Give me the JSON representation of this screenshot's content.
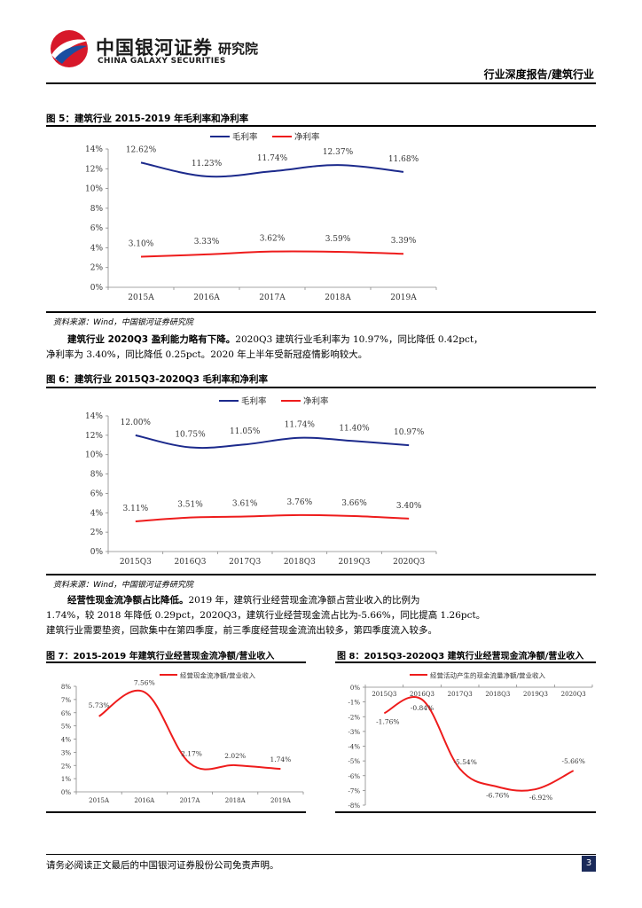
{
  "header": {
    "company_cn": "中国银河证券",
    "institute": "研究院",
    "company_en": "CHINA GALAXY SECURITIES",
    "report_type": "行业深度报告/建筑行业"
  },
  "figure5": {
    "title": "图 5：建筑行业 2015-2019 年毛利率和净利率",
    "source": "资料来源：Wind，中国银河证券研究院"
  },
  "para1": {
    "bold": "建筑行业 2020Q3 盈利能力略有下降。",
    "text1": "2020Q3 建筑行业毛利率为 10.97%，同比降低 0.42pct，",
    "text2": "净利率为 3.40%，同比降低 0.25pct。2020 年上半年受新冠疫情影响较大。"
  },
  "figure6": {
    "title": "图 6：建筑行业 2015Q3-2020Q3 毛利率和净利率",
    "source": "资料来源：Wind，中国银河证券研究院"
  },
  "para2": {
    "bold": "经营性现金流净额占比降低。",
    "text1": "2019 年，建筑行业经营现金流净额占营业收入的比例为",
    "text2": "1.74%，较 2018 年降低 0.29pct，2020Q3，建筑行业经营现金流占比为-5.66%，同比提高 1.26pct。",
    "text3": "建筑行业需要垫资，回款集中在第四季度，前三季度经营现金流流出较多，第四季度流入较多。"
  },
  "figure7": {
    "title": "图 7：2015-2019 年建筑行业经营现金流净额/营业收入"
  },
  "figure8": {
    "title": "图 8：2015Q3-2020Q3 建筑行业经营现金流净额/营业收入"
  },
  "footer": {
    "disclaimer": "请务必阅读正文最后的中国银河证券股份公司免责声明。",
    "page": "3"
  },
  "colors": {
    "blue": "#1c2a8c",
    "red": "#ee1c1c",
    "logo_red": "#d7182a",
    "logo_blue": "#1a4ea1"
  },
  "chart_data": [
    {
      "id": "figure5",
      "type": "line",
      "categories": [
        "2015A",
        "2016A",
        "2017A",
        "2018A",
        "2019A"
      ],
      "series": [
        {
          "name": "毛利率",
          "values": [
            12.62,
            11.23,
            11.74,
            12.37,
            11.68
          ],
          "labels": [
            "12.62%",
            "11.23%",
            "11.74%",
            "12.37%",
            "11.68%"
          ],
          "color": "#1c2a8c"
        },
        {
          "name": "净利率",
          "values": [
            3.1,
            3.33,
            3.62,
            3.59,
            3.39
          ],
          "labels": [
            "3.10%",
            "3.33%",
            "3.62%",
            "3.59%",
            "3.39%"
          ],
          "color": "#ee1c1c"
        }
      ],
      "yticks": [
        "14%",
        "12%",
        "10%",
        "8%",
        "6%",
        "4%",
        "2%",
        "0%"
      ],
      "ylim": [
        0,
        14
      ],
      "legend": "top"
    },
    {
      "id": "figure6",
      "type": "line",
      "categories": [
        "2015Q3",
        "2016Q3",
        "2017Q3",
        "2018Q3",
        "2019Q3",
        "2020Q3"
      ],
      "series": [
        {
          "name": "毛利率",
          "values": [
            12.0,
            10.75,
            11.05,
            11.74,
            11.4,
            10.97
          ],
          "labels": [
            "12.00%",
            "10.75%",
            "11.05%",
            "11.74%",
            "11.40%",
            "10.97%"
          ],
          "color": "#1c2a8c"
        },
        {
          "name": "净利率",
          "values": [
            3.11,
            3.51,
            3.61,
            3.76,
            3.66,
            3.4
          ],
          "labels": [
            "3.11%",
            "3.51%",
            "3.61%",
            "3.76%",
            "3.66%",
            "3.40%"
          ],
          "color": "#ee1c1c"
        }
      ],
      "yticks": [
        "14%",
        "12%",
        "10%",
        "8%",
        "6%",
        "4%",
        "2%",
        "0%"
      ],
      "ylim": [
        0,
        14
      ],
      "legend": "top"
    },
    {
      "id": "figure7",
      "type": "line",
      "categories": [
        "2015A",
        "2016A",
        "2017A",
        "2018A",
        "2019A"
      ],
      "series": [
        {
          "name": "经营现金流净额/营业收入",
          "values": [
            5.73,
            7.56,
            2.17,
            2.02,
            1.74
          ],
          "labels": [
            "5.73%",
            "7.56%",
            "2.17%",
            "2.02%",
            "1.74%"
          ],
          "color": "#ee1c1c"
        }
      ],
      "yticks": [
        "8%",
        "7%",
        "6%",
        "5%",
        "4%",
        "3%",
        "2%",
        "1%",
        "0%"
      ],
      "ylim": [
        0,
        8
      ],
      "legend": "top"
    },
    {
      "id": "figure8",
      "type": "line",
      "categories": [
        "2015Q3",
        "2016Q3",
        "2017Q3",
        "2018Q3",
        "2019Q3",
        "2020Q3"
      ],
      "series": [
        {
          "name": "经营活动产生的现金流量净额/营业收入",
          "values": [
            -1.76,
            -0.84,
            -5.54,
            -6.76,
            -6.92,
            -5.66
          ],
          "labels": [
            "-1.76%",
            "-0.84%",
            "-5.54%",
            "-6.76%",
            "-6.92%",
            "-5.66%"
          ],
          "color": "#ee1c1c"
        }
      ],
      "yticks": [
        "0%",
        "-1%",
        "-2%",
        "-3%",
        "-4%",
        "-5%",
        "-6%",
        "-7%",
        "-8%"
      ],
      "ylim": [
        -8,
        0
      ],
      "legend": "top"
    }
  ]
}
